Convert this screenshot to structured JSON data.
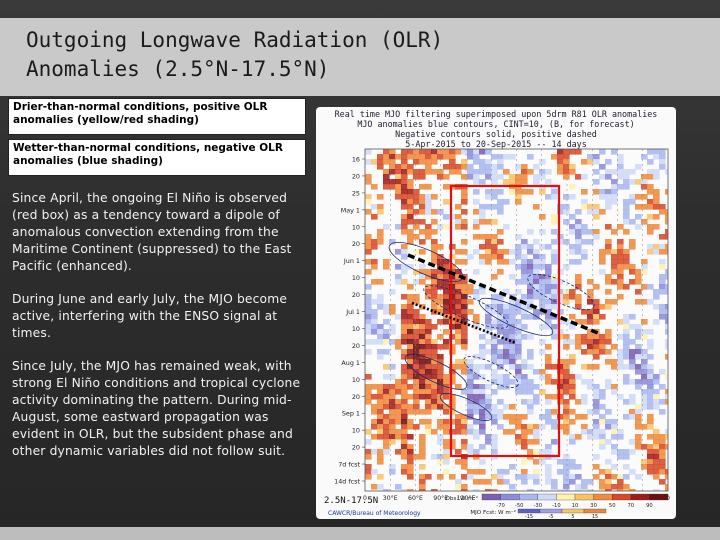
{
  "slide": {
    "title_line1": "Outgoing Longwave Radiation (OLR)",
    "title_line2": "Anomalies (2.5°N-17.5°N)"
  },
  "legend": {
    "warm": "Drier-than-normal conditions, positive OLR anomalies (yellow/red shading)",
    "cool": "Wetter-than-normal conditions, negative OLR anomalies (blue shading)"
  },
  "paragraphs": [
    "Since April, the ongoing El Niño is observed (red box) as a tendency toward a dipole of anomalous convection extending from the Maritime Continent (suppressed) to the East Pacific (enhanced).",
    "During June and early July, the MJO become active, interfering with the ENSO signal at times.",
    "Since July, the MJO has remained weak, with strong El Niño conditions and tropical cyclone activity dominating the pattern. During mid-August, some eastward propagation was evident in OLR, but the subsident phase and other dynamic variables did not follow suit."
  ],
  "chart_data": {
    "type": "heatmap",
    "title_lines": [
      "Real time MJO filtering superimposed upon 5drm R81 OLR anomalies",
      "MJO anomalies blue contours, CINT=10, (B, for forecast)",
      "Negative contours solid, positive dashed",
      "5-Apr-2015 to 20-Sep-2015 -- 14 days"
    ],
    "y_labels": [
      "16",
      "20",
      "25",
      "May 1",
      "10",
      "20",
      "Jun 1",
      "10",
      "20",
      "Jul 1",
      "10",
      "20",
      "Aug 1",
      "10",
      "20",
      "Sep 1",
      "10",
      "20",
      "7d fcst",
      "14d fcst"
    ],
    "x_labels": [
      "0",
      "30°E",
      "60°E",
      "90°E",
      "120°E",
      "150°E",
      "180",
      "150°W",
      "120°W",
      "90°W",
      "60°W",
      "30°W",
      "0"
    ],
    "lat_band": "2.5N-17.5N",
    "colorbar": {
      "unit_label": "Obs: W m⁻²",
      "forecast_label": "MJO Fcst: W m⁻²",
      "ticks": [
        "-70",
        "-50",
        "-30",
        "-10",
        "10",
        "30",
        "50",
        "70",
        "90"
      ],
      "forecast_ticks": [
        "-15",
        "-5",
        "5",
        "15"
      ],
      "colors": [
        "#7d5fb0",
        "#8c8cd8",
        "#a9b7ee",
        "#cfdaf8",
        "#fdf1b0",
        "#f9c266",
        "#f08a3e",
        "#d64a2a",
        "#a01c1c",
        "#6b1010"
      ]
    },
    "credit": "CAWCR/Bureau of Meteorology",
    "annotations": {
      "enso_box": "red box: 120°E–110°W, May 1 – late Sep",
      "mjo_tracks": 2
    }
  }
}
